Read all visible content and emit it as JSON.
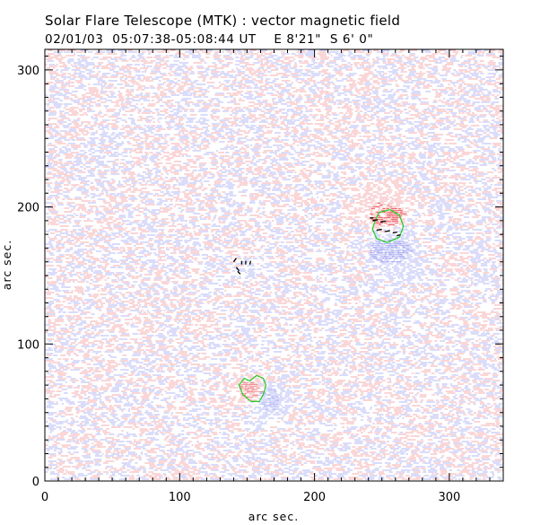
{
  "header": {
    "title": "Solar Flare Telescope (MTK) : vector magnetic field",
    "subtitle": "02/01/03  05:07:38-05:08:44 UT    E 8'21\"  S 6' 0\""
  },
  "chart_data": {
    "type": "heatmap",
    "xlabel": "arc sec.",
    "ylabel": "arc sec.",
    "xlim": [
      0,
      340
    ],
    "ylim": [
      0,
      315
    ],
    "x_ticks": [
      0,
      100,
      200,
      300
    ],
    "y_ticks": [
      0,
      100,
      200,
      300
    ],
    "colors": {
      "positive": "#e8484d",
      "negative": "#5a62e6",
      "contour": "#22cc22",
      "vector": "#000000"
    },
    "contours": [
      [
        [
          245,
          190
        ],
        [
          248,
          196
        ],
        [
          256,
          198
        ],
        [
          263,
          194
        ],
        [
          266,
          186
        ],
        [
          263,
          178
        ],
        [
          254,
          174
        ],
        [
          246,
          177
        ],
        [
          243,
          184
        ]
      ],
      [
        [
          144,
          70
        ],
        [
          147,
          63
        ],
        [
          153,
          58
        ],
        [
          159,
          58
        ],
        [
          162,
          63
        ],
        [
          164,
          70
        ],
        [
          162,
          75
        ],
        [
          157,
          77
        ],
        [
          152,
          73
        ],
        [
          148,
          75
        ]
      ]
    ]
  }
}
